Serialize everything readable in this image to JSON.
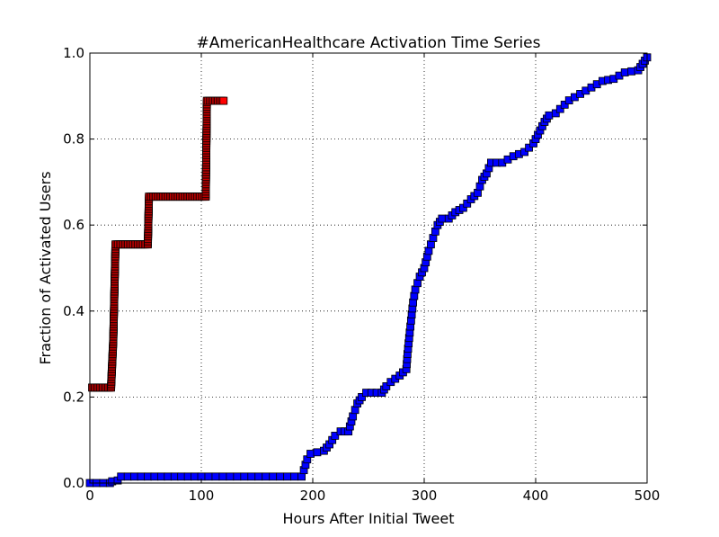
{
  "chart_data": {
    "type": "line",
    "title": "#AmericanHealthcare Activation Time Series",
    "xlabel": "Hours After Initial Tweet",
    "ylabel": "Fraction of Activated Users",
    "xlim": [
      0,
      500
    ],
    "ylim": [
      0.0,
      1.0
    ],
    "xticks": [
      "0",
      "100",
      "200",
      "300",
      "400",
      "500"
    ],
    "yticks": [
      "0.0",
      "0.2",
      "0.4",
      "0.6",
      "0.8",
      "1.0"
    ],
    "grid": true,
    "legend": "none",
    "series": [
      {
        "color": "#ff0000",
        "marker": "square",
        "points": [
          [
            2,
            0.222
          ],
          [
            19,
            0.222
          ],
          [
            21,
            0.333
          ],
          [
            22,
            0.444
          ],
          [
            23,
            0.555
          ],
          [
            52,
            0.555
          ],
          [
            53,
            0.666
          ],
          [
            104,
            0.666
          ],
          [
            105,
            0.889
          ],
          [
            120,
            0.889
          ]
        ]
      },
      {
        "color": "#0000ff",
        "marker": "square",
        "points": [
          [
            0,
            0.0
          ],
          [
            18,
            0.0
          ],
          [
            20,
            0.004
          ],
          [
            25,
            0.006
          ],
          [
            28,
            0.015
          ],
          [
            100,
            0.015
          ],
          [
            190,
            0.015
          ],
          [
            192,
            0.03
          ],
          [
            195,
            0.055
          ],
          [
            198,
            0.068
          ],
          [
            210,
            0.075
          ],
          [
            215,
            0.09
          ],
          [
            220,
            0.11
          ],
          [
            225,
            0.12
          ],
          [
            232,
            0.12
          ],
          [
            236,
            0.155
          ],
          [
            240,
            0.185
          ],
          [
            244,
            0.2
          ],
          [
            248,
            0.21
          ],
          [
            262,
            0.21
          ],
          [
            266,
            0.225
          ],
          [
            270,
            0.235
          ],
          [
            278,
            0.25
          ],
          [
            284,
            0.265
          ],
          [
            285,
            0.3
          ],
          [
            287,
            0.35
          ],
          [
            290,
            0.42
          ],
          [
            292,
            0.45
          ],
          [
            296,
            0.48
          ],
          [
            300,
            0.5
          ],
          [
            304,
            0.54
          ],
          [
            308,
            0.57
          ],
          [
            312,
            0.6
          ],
          [
            316,
            0.615
          ],
          [
            322,
            0.615
          ],
          [
            328,
            0.63
          ],
          [
            335,
            0.64
          ],
          [
            342,
            0.66
          ],
          [
            348,
            0.675
          ],
          [
            352,
            0.705
          ],
          [
            356,
            0.72
          ],
          [
            360,
            0.745
          ],
          [
            370,
            0.745
          ],
          [
            380,
            0.76
          ],
          [
            390,
            0.77
          ],
          [
            398,
            0.79
          ],
          [
            402,
            0.81
          ],
          [
            408,
            0.84
          ],
          [
            412,
            0.855
          ],
          [
            418,
            0.86
          ],
          [
            422,
            0.87
          ],
          [
            430,
            0.89
          ],
          [
            440,
            0.905
          ],
          [
            450,
            0.92
          ],
          [
            460,
            0.935
          ],
          [
            470,
            0.94
          ],
          [
            480,
            0.955
          ],
          [
            492,
            0.96
          ],
          [
            496,
            0.975
          ],
          [
            500,
            0.99
          ]
        ]
      }
    ]
  }
}
